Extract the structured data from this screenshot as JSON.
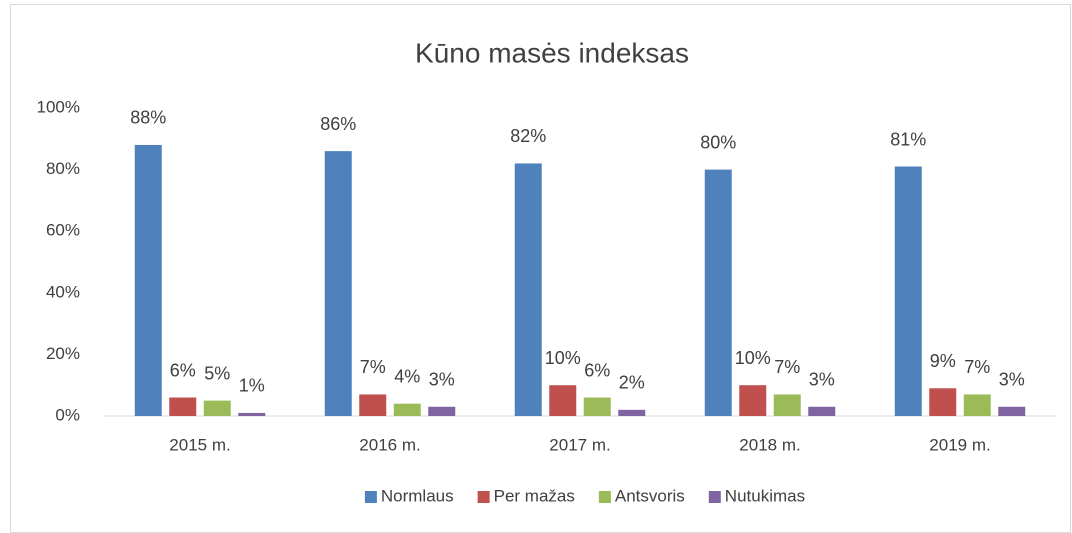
{
  "chart_data": {
    "type": "bar",
    "title": "Kūno masės indeksas",
    "categories": [
      "2015 m.",
      "2016 m.",
      "2017 m.",
      "2018 m.",
      "2019 m."
    ],
    "series": [
      {
        "name": "Normlaus",
        "color": "#4f81bd",
        "values": [
          88,
          86,
          82,
          80,
          81
        ],
        "value_labels": [
          "88%",
          "86%",
          "82%",
          "80%",
          "81%"
        ]
      },
      {
        "name": "Per mažas",
        "color": "#c0504d",
        "values": [
          6,
          7,
          10,
          10,
          9
        ],
        "value_labels": [
          "6%",
          "7%",
          "10%",
          "10%",
          "9%"
        ]
      },
      {
        "name": "Antsvoris",
        "color": "#9bbb59",
        "values": [
          5,
          4,
          6,
          7,
          7
        ],
        "value_labels": [
          "5%",
          "4%",
          "6%",
          "7%",
          "7%"
        ]
      },
      {
        "name": "Nutukimas",
        "color": "#8064a2",
        "values": [
          1,
          3,
          2,
          3,
          3
        ],
        "value_labels": [
          "1%",
          "3%",
          "2%",
          "3%",
          "3%"
        ]
      }
    ],
    "ylim": [
      0,
      100
    ],
    "yticks": [
      {
        "value": 0,
        "label": "0%"
      },
      {
        "value": 20,
        "label": "20%"
      },
      {
        "value": 40,
        "label": "40%"
      },
      {
        "value": 60,
        "label": "60%"
      },
      {
        "value": 80,
        "label": "80%"
      },
      {
        "value": 100,
        "label": "100%"
      }
    ],
    "grid": false,
    "legend": "bottom"
  }
}
